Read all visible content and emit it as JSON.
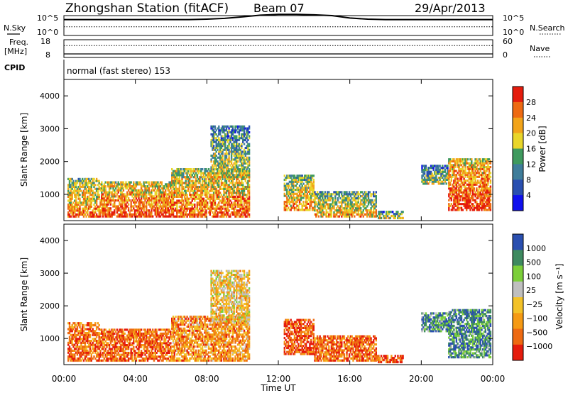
{
  "header": {
    "station": "Zhongshan Station (fitACF)",
    "beam": "Beam 07",
    "date": "29/Apr/2013"
  },
  "strip_panels": {
    "nsky_label": "N.Sky",
    "nsky_ticks": [
      "10^5",
      "10^0"
    ],
    "nsearch_label": "N.Search",
    "nsearch_ticks": [
      "10^5",
      "10^0"
    ],
    "freq_label_1": "Freq.",
    "freq_label_2": "[MHz]",
    "freq_ticks": [
      "18",
      "8"
    ],
    "nave_label": "Nave",
    "nave_ticks": [
      "60",
      "0"
    ],
    "cpid_label": "CPID",
    "cpid_text": "normal (fast stereo) 153"
  },
  "colors": {
    "power": [
      "#1010ee",
      "#2a4fb0",
      "#3f7d9a",
      "#3f9a5e",
      "#e9d62a",
      "#f2a41a",
      "#ee6a12",
      "#e51c0d"
    ],
    "velocity": [
      "#e51c0d",
      "#ee6a12",
      "#f59a14",
      "#f3c228",
      "#bfbfbf",
      "#7ccf3a",
      "#3e8a60",
      "#2a4fb0"
    ]
  },
  "chart_data": [
    {
      "type": "line",
      "name": "N.Sky / N.Search",
      "x": [
        "00:00",
        "01:00",
        "02:00",
        "03:00",
        "04:00",
        "05:00",
        "06:00",
        "07:00",
        "08:00",
        "09:00",
        "10:00",
        "11:00",
        "12:00",
        "13:00",
        "14:00",
        "15:00",
        "16:00",
        "17:00",
        "18:00",
        "19:00",
        "20:00",
        "21:00",
        "22:00",
        "23:00",
        "24:00"
      ],
      "y_nsky_log": [
        4.0,
        4.0,
        4.0,
        4.0,
        4.0,
        4.0,
        4.0,
        4.0,
        4.1,
        4.3,
        4.7,
        5.1,
        5.3,
        5.3,
        5.2,
        5.0,
        4.4,
        4.1,
        4.0,
        4.0,
        4.0,
        4.0,
        4.0,
        4.0,
        4.0
      ],
      "y_nsearch_log": [
        2.2,
        2.2,
        2.2,
        2.2,
        2.2,
        2.2,
        2.2,
        2.2,
        2.2,
        2.2,
        2.2,
        2.2,
        2.2,
        2.2,
        2.2,
        2.2,
        2.2,
        2.2,
        2.2,
        2.2,
        2.2,
        2.2,
        2.2,
        2.2,
        2.2
      ],
      "ylim_log": [
        0,
        5
      ]
    },
    {
      "type": "line",
      "name": "Freq. / Nave",
      "x": [
        "00:00",
        "01:00",
        "02:00",
        "03:00",
        "04:00",
        "05:00",
        "06:00",
        "07:00",
        "08:00",
        "09:00",
        "10:00",
        "11:00",
        "12:00",
        "13:00",
        "14:00",
        "15:00",
        "16:00",
        "17:00",
        "18:00",
        "19:00",
        "20:00",
        "21:00",
        "22:00",
        "23:00",
        "24:00"
      ],
      "freq_mhz": [
        10.0,
        10.0,
        10.0,
        10.0,
        10.0,
        10.0,
        10.0,
        10.0,
        10.0,
        10.0,
        10.0,
        10.0,
        10.0,
        10.0,
        10.0,
        10.0,
        10.0,
        10.0,
        10.0,
        10.0,
        10.0,
        10.0,
        10.0,
        10.0,
        10.0
      ],
      "nave": [
        40,
        40,
        40,
        40,
        40,
        40,
        40,
        40,
        40,
        40,
        40,
        40,
        40,
        40,
        40,
        40,
        40,
        40,
        40,
        40,
        40,
        40,
        40,
        40,
        40
      ],
      "freq_lim": [
        8,
        18
      ],
      "nave_lim": [
        0,
        60
      ]
    },
    {
      "type": "heatmap",
      "name": "Power",
      "xlabel": "",
      "ylabel": "Slant Range [km]",
      "xlim_hours": [
        0,
        24
      ],
      "ylim_km": [
        200,
        4500
      ],
      "yticks": [
        "1000",
        "2000",
        "3000",
        "4000"
      ],
      "colorbar_label": "Power [dB]",
      "colorbar_ticks": [
        "4",
        "8",
        "12",
        "16",
        "20",
        "24",
        "28"
      ],
      "colorbar_range": [
        0,
        32
      ],
      "echo_regions": [
        {
          "t0": 0.2,
          "t1": 2.0,
          "r0": 300,
          "r1": 1500,
          "level": 0.55
        },
        {
          "t0": 2.0,
          "t1": 6.0,
          "r0": 300,
          "r1": 1400,
          "level": 0.65
        },
        {
          "t0": 6.0,
          "t1": 10.4,
          "r0": 300,
          "r1": 1800,
          "level": 0.6
        },
        {
          "t0": 8.2,
          "t1": 10.4,
          "r0": 1500,
          "r1": 3100,
          "level": 0.35
        },
        {
          "t0": 12.3,
          "t1": 14.0,
          "r0": 500,
          "r1": 1600,
          "level": 0.5
        },
        {
          "t0": 14.0,
          "t1": 17.5,
          "r0": 300,
          "r1": 1100,
          "level": 0.45
        },
        {
          "t0": 17.5,
          "t1": 19.0,
          "r0": 250,
          "r1": 500,
          "level": 0.3
        },
        {
          "t0": 20.0,
          "t1": 21.5,
          "r0": 1300,
          "r1": 1900,
          "level": 0.3
        },
        {
          "t0": 21.5,
          "t1": 23.9,
          "r0": 500,
          "r1": 2100,
          "level": 0.7
        }
      ]
    },
    {
      "type": "heatmap",
      "name": "Velocity",
      "xlabel": "Time UT",
      "ylabel": "Slant Range [km]",
      "xlim_hours": [
        0,
        24
      ],
      "xticks": [
        "00:00",
        "04:00",
        "08:00",
        "12:00",
        "16:00",
        "20:00",
        "00:00"
      ],
      "ylim_km": [
        200,
        4500
      ],
      "yticks": [
        "1000",
        "2000",
        "3000",
        "4000"
      ],
      "colorbar_label": "Velocity [m s⁻¹]",
      "colorbar_ticks": [
        "1000",
        "500",
        "100",
        "25",
        "−25",
        "−100",
        "−500",
        "−1000"
      ],
      "colorbar_range": [
        -1000,
        1000
      ],
      "echo_regions": [
        {
          "t0": 0.2,
          "t1": 2.0,
          "r0": 300,
          "r1": 1500,
          "level": 0.2
        },
        {
          "t0": 2.0,
          "t1": 6.0,
          "r0": 300,
          "r1": 1300,
          "level": 0.18
        },
        {
          "t0": 6.0,
          "t1": 10.4,
          "r0": 300,
          "r1": 1700,
          "level": 0.3
        },
        {
          "t0": 8.2,
          "t1": 10.4,
          "r0": 1500,
          "r1": 3100,
          "level": 0.45
        },
        {
          "t0": 12.3,
          "t1": 14.0,
          "r0": 500,
          "r1": 1600,
          "level": 0.15
        },
        {
          "t0": 14.0,
          "t1": 17.5,
          "r0": 300,
          "r1": 1100,
          "level": 0.18
        },
        {
          "t0": 17.5,
          "t1": 19.0,
          "r0": 250,
          "r1": 500,
          "level": 0.15
        },
        {
          "t0": 20.0,
          "t1": 21.5,
          "r0": 1200,
          "r1": 1800,
          "level": 0.8
        },
        {
          "t0": 21.5,
          "t1": 23.9,
          "r0": 400,
          "r1": 1900,
          "level": 0.82
        }
      ]
    }
  ]
}
